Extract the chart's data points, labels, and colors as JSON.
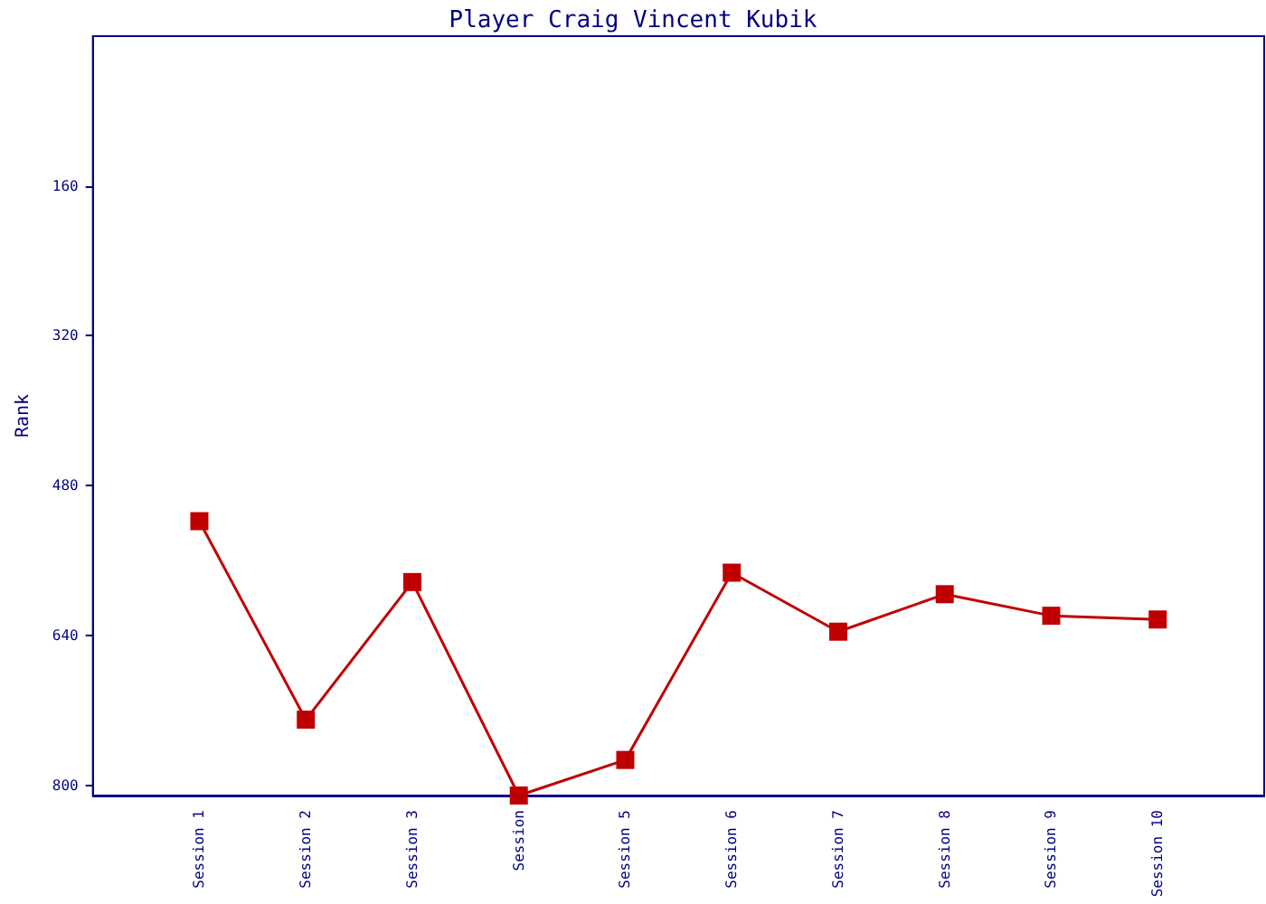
{
  "chart_data": {
    "type": "line",
    "title": "Player Craig Vincent Kubik",
    "ylabel": "Rank",
    "categories": [
      "Session 1",
      "Session 2",
      "Session 3",
      "Session",
      "Session 5",
      "Session 6",
      "Session 7",
      "Session 8",
      "Session 9",
      "Session 10"
    ],
    "series": [
      {
        "color": "#c00000",
        "values": [
          518,
          730,
          583,
          811,
          773,
          573,
          636,
          596,
          619,
          623
        ]
      }
    ],
    "ylim": [
      811,
      0
    ],
    "yticks": [
      160,
      320,
      480,
      640,
      800
    ],
    "grid": false,
    "marker": "square",
    "line_style": "solid"
  }
}
